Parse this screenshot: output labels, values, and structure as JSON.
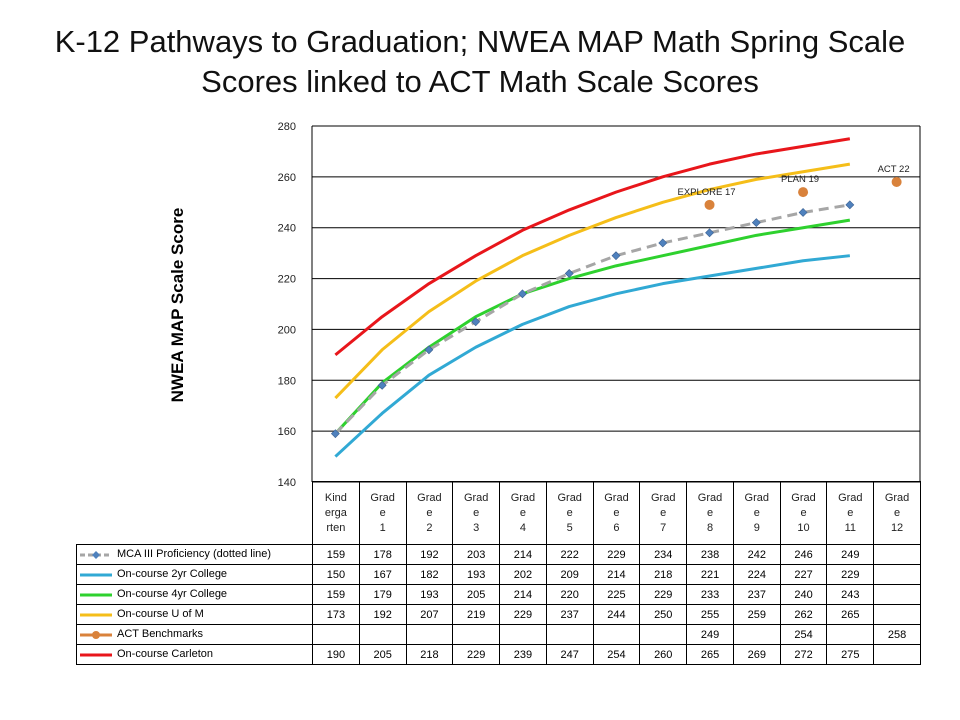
{
  "title": "K-12 Pathways to Graduation; NWEA MAP Math Spring Scale Scores linked to ACT Math Scale Scores",
  "chart_data": {
    "type": "line",
    "title": "K-12 Pathways to Graduation; NWEA MAP Math Spring Scale Scores linked to ACT Math Scale Scores",
    "ylabel": "NWEA MAP Scale Score",
    "xlabel": "",
    "ylim": [
      140,
      280
    ],
    "yticks": [
      140,
      160,
      180,
      200,
      220,
      240,
      260,
      280
    ],
    "grid": true,
    "legend": "data-table",
    "categories": [
      "Kind erga rten",
      "Grad e 1",
      "Grad e 2",
      "Grad e 3",
      "Grad e 4",
      "Grad e 5",
      "Grad e 6",
      "Grad e 7",
      "Grad e 8",
      "Grad e 9",
      "Grad e 10",
      "Grad e 11",
      "Grad e 12"
    ],
    "series": [
      {
        "name": "MCA III Proficiency (dotted line)",
        "color": "#a6a6a6",
        "marker_color": "#4f81bd",
        "style": "dashed",
        "values": [
          159,
          178,
          192,
          203,
          214,
          222,
          229,
          234,
          238,
          242,
          246,
          249,
          null
        ]
      },
      {
        "name": "On-course 2yr College",
        "color": "#31a9d4",
        "style": "solid",
        "values": [
          150,
          167,
          182,
          193,
          202,
          209,
          214,
          218,
          221,
          224,
          227,
          229,
          null
        ]
      },
      {
        "name": "On-course 4yr College",
        "color": "#2ed12e",
        "style": "solid",
        "values": [
          159,
          179,
          193,
          205,
          214,
          220,
          225,
          229,
          233,
          237,
          240,
          243,
          null
        ]
      },
      {
        "name": "On-course U of M",
        "color": "#f5be19",
        "style": "solid",
        "values": [
          173,
          192,
          207,
          219,
          229,
          237,
          244,
          250,
          255,
          259,
          262,
          265,
          null
        ]
      },
      {
        "name": "ACT Benchmarks",
        "color": "#d9823b",
        "style": "markers",
        "values": [
          null,
          null,
          null,
          null,
          null,
          null,
          null,
          null,
          249,
          null,
          254,
          null,
          258
        ]
      },
      {
        "name": "On-course Carleton",
        "color": "#e8161b",
        "style": "solid",
        "values": [
          190,
          205,
          218,
          229,
          239,
          247,
          254,
          260,
          265,
          269,
          272,
          275,
          null
        ]
      }
    ],
    "annotations": [
      {
        "text": "EXPLORE 17",
        "category_index": 8,
        "value": 249
      },
      {
        "text": "PLAN 19",
        "category_index": 10,
        "value": 254
      },
      {
        "text": "ACT 22",
        "category_index": 12,
        "value": 258
      }
    ]
  }
}
